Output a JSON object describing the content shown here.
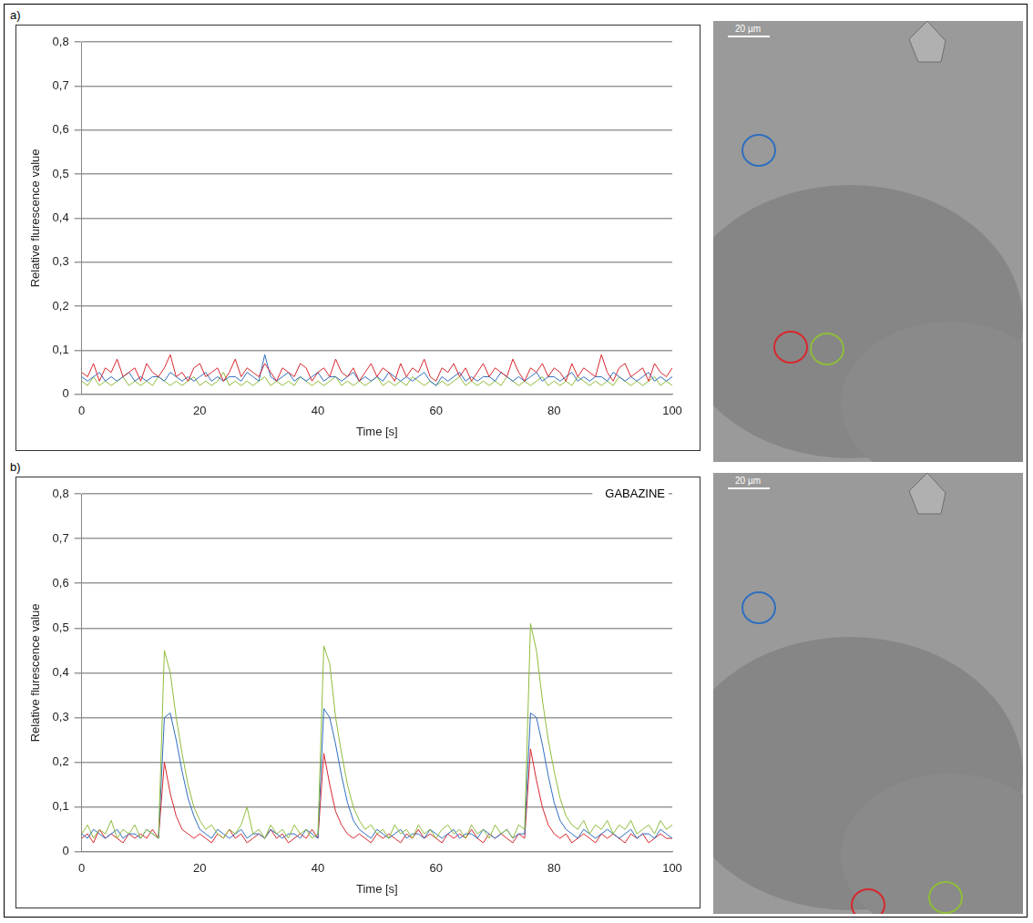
{
  "chart_data": [
    {
      "type": "line",
      "panel": "a)",
      "x_label": "Time [s]",
      "y_label": "Relative flurescence value",
      "xlim": [
        0,
        100
      ],
      "xticks": [
        0,
        20,
        40,
        60,
        80,
        100
      ],
      "ylim": [
        0,
        0.8
      ],
      "yticks": [
        0,
        {
          "value": 0.1,
          "label": "0,1"
        },
        {
          "value": 0.2,
          "label": "0,2"
        },
        {
          "value": 0.3,
          "label": "0,3"
        },
        {
          "value": 0.4,
          "label": "0,4"
        },
        {
          "value": 0.5,
          "label": "0,5"
        },
        {
          "value": 0.6,
          "label": "0,6"
        },
        {
          "value": 0.7,
          "label": "0,7"
        },
        {
          "value": 0.8,
          "label": "0,8"
        }
      ],
      "grid": "y",
      "x": [
        0,
        1,
        2,
        3,
        4,
        5,
        6,
        7,
        8,
        9,
        10,
        11,
        12,
        13,
        14,
        15,
        16,
        17,
        18,
        19,
        20,
        21,
        22,
        23,
        24,
        25,
        26,
        27,
        28,
        29,
        30,
        31,
        32,
        33,
        34,
        35,
        36,
        37,
        38,
        39,
        40,
        41,
        42,
        43,
        44,
        45,
        46,
        47,
        48,
        49,
        50,
        51,
        52,
        53,
        54,
        55,
        56,
        57,
        58,
        59,
        60,
        61,
        62,
        63,
        64,
        65,
        66,
        67,
        68,
        69,
        70,
        71,
        72,
        73,
        74,
        75,
        76,
        77,
        78,
        79,
        80,
        81,
        82,
        83,
        84,
        85,
        86,
        87,
        88,
        89,
        90,
        91,
        92,
        93,
        94,
        95,
        96,
        97,
        98,
        99,
        100
      ],
      "series": [
        {
          "color": "#d7282f",
          "values": [
            0.05,
            0.04,
            0.07,
            0.03,
            0.06,
            0.05,
            0.08,
            0.04,
            0.05,
            0.06,
            0.03,
            0.07,
            0.05,
            0.04,
            0.06,
            0.09,
            0.04,
            0.05,
            0.03,
            0.06,
            0.07,
            0.04,
            0.05,
            0.06,
            0.03,
            0.05,
            0.08,
            0.04,
            0.06,
            0.05,
            0.04,
            0.07,
            0.05,
            0.03,
            0.06,
            0.05,
            0.04,
            0.07,
            0.06,
            0.03,
            0.05,
            0.06,
            0.04,
            0.08,
            0.05,
            0.04,
            0.06,
            0.03,
            0.05,
            0.07,
            0.04,
            0.06,
            0.05,
            0.03,
            0.07,
            0.04,
            0.06,
            0.05,
            0.08,
            0.04,
            0.03,
            0.06,
            0.05,
            0.07,
            0.04,
            0.06,
            0.03,
            0.05,
            0.07,
            0.04,
            0.06,
            0.05,
            0.04,
            0.08,
            0.05,
            0.03,
            0.06,
            0.05,
            0.07,
            0.04,
            0.06,
            0.05,
            0.03,
            0.07,
            0.04,
            0.06,
            0.05,
            0.04,
            0.09,
            0.05,
            0.03,
            0.06,
            0.07,
            0.04,
            0.05,
            0.06,
            0.03,
            0.07,
            0.05,
            0.04,
            0.06
          ]
        },
        {
          "color": "#2f6fbf",
          "values": [
            0.04,
            0.03,
            0.04,
            0.05,
            0.03,
            0.04,
            0.03,
            0.04,
            0.05,
            0.03,
            0.04,
            0.03,
            0.04,
            0.04,
            0.03,
            0.05,
            0.04,
            0.03,
            0.04,
            0.03,
            0.04,
            0.05,
            0.03,
            0.04,
            0.03,
            0.04,
            0.04,
            0.03,
            0.05,
            0.04,
            0.03,
            0.09,
            0.04,
            0.03,
            0.04,
            0.05,
            0.03,
            0.04,
            0.03,
            0.04,
            0.05,
            0.03,
            0.04,
            0.04,
            0.03,
            0.04,
            0.05,
            0.03,
            0.04,
            0.03,
            0.04,
            0.03,
            0.05,
            0.04,
            0.03,
            0.04,
            0.03,
            0.04,
            0.05,
            0.03,
            0.02,
            0.04,
            0.03,
            0.04,
            0.05,
            0.03,
            0.04,
            0.03,
            0.04,
            0.04,
            0.03,
            0.05,
            0.04,
            0.03,
            0.04,
            0.03,
            0.04,
            0.05,
            0.03,
            0.04,
            0.04,
            0.03,
            0.04,
            0.05,
            0.03,
            0.04,
            0.03,
            0.04,
            0.04,
            0.03,
            0.05,
            0.04,
            0.03,
            0.04,
            0.03,
            0.04,
            0.05,
            0.03,
            0.04,
            0.03,
            0.04
          ]
        },
        {
          "color": "#8fbc3c",
          "values": [
            0.03,
            0.02,
            0.04,
            0.02,
            0.03,
            0.02,
            0.03,
            0.04,
            0.02,
            0.03,
            0.02,
            0.03,
            0.02,
            0.04,
            0.03,
            0.02,
            0.03,
            0.02,
            0.03,
            0.04,
            0.02,
            0.03,
            0.02,
            0.03,
            0.05,
            0.02,
            0.03,
            0.02,
            0.03,
            0.02,
            0.03,
            0.04,
            0.02,
            0.03,
            0.02,
            0.03,
            0.02,
            0.04,
            0.03,
            0.02,
            0.03,
            0.02,
            0.03,
            0.04,
            0.02,
            0.03,
            0.02,
            0.03,
            0.02,
            0.03,
            0.04,
            0.02,
            0.03,
            0.02,
            0.03,
            0.02,
            0.04,
            0.03,
            0.02,
            0.03,
            0.02,
            0.03,
            0.02,
            0.03,
            0.04,
            0.02,
            0.03,
            0.02,
            0.03,
            0.02,
            0.03,
            0.02,
            0.04,
            0.03,
            0.02,
            0.03,
            0.02,
            0.03,
            0.04,
            0.02,
            0.03,
            0.02,
            0.03,
            0.02,
            0.04,
            0.03,
            0.02,
            0.03,
            0.02,
            0.03,
            0.02,
            0.04,
            0.03,
            0.02,
            0.03,
            0.02,
            0.03,
            0.04,
            0.02,
            0.03,
            0.02
          ]
        }
      ],
      "image": {
        "scale_bar": "20 µm"
      }
    },
    {
      "type": "line",
      "panel": "b)",
      "annotation": "GABAZINE",
      "x_label": "Time [s]",
      "y_label": "Relative flurescence value",
      "xlim": [
        0,
        100
      ],
      "xticks": [
        0,
        20,
        40,
        60,
        80,
        100
      ],
      "ylim": [
        0,
        0.8
      ],
      "yticks": [
        0,
        {
          "value": 0.1,
          "label": "0,1"
        },
        {
          "value": 0.2,
          "label": "0,2"
        },
        {
          "value": 0.3,
          "label": "0,3"
        },
        {
          "value": 0.4,
          "label": "0,4"
        },
        {
          "value": 0.5,
          "label": "0,5"
        },
        {
          "value": 0.6,
          "label": "0,6"
        },
        {
          "value": 0.7,
          "label": "0,7"
        },
        {
          "value": 0.8,
          "label": "0,8"
        }
      ],
      "grid": "y",
      "x": [
        0,
        1,
        2,
        3,
        4,
        5,
        6,
        7,
        8,
        9,
        10,
        11,
        12,
        13,
        14,
        15,
        16,
        17,
        18,
        19,
        20,
        21,
        22,
        23,
        24,
        25,
        26,
        27,
        28,
        29,
        30,
        31,
        32,
        33,
        34,
        35,
        36,
        37,
        38,
        39,
        40,
        41,
        42,
        43,
        44,
        45,
        46,
        47,
        48,
        49,
        50,
        51,
        52,
        53,
        54,
        55,
        56,
        57,
        58,
        59,
        60,
        61,
        62,
        63,
        64,
        65,
        66,
        67,
        68,
        69,
        70,
        71,
        72,
        73,
        74,
        75,
        76,
        77,
        78,
        79,
        80,
        81,
        82,
        83,
        84,
        85,
        86,
        87,
        88,
        89,
        90,
        91,
        92,
        93,
        94,
        95,
        96,
        97,
        98,
        99,
        100
      ],
      "series": [
        {
          "color": "#8fbc3c",
          "values": [
            0.04,
            0.06,
            0.03,
            0.05,
            0.04,
            0.07,
            0.03,
            0.05,
            0.04,
            0.06,
            0.03,
            0.05,
            0.04,
            0.03,
            0.45,
            0.4,
            0.3,
            0.22,
            0.15,
            0.1,
            0.07,
            0.05,
            0.06,
            0.04,
            0.03,
            0.05,
            0.04,
            0.06,
            0.1,
            0.04,
            0.05,
            0.03,
            0.06,
            0.04,
            0.05,
            0.03,
            0.06,
            0.04,
            0.05,
            0.03,
            0.04,
            0.46,
            0.42,
            0.3,
            0.22,
            0.15,
            0.1,
            0.07,
            0.05,
            0.06,
            0.04,
            0.05,
            0.03,
            0.06,
            0.04,
            0.05,
            0.03,
            0.06,
            0.04,
            0.05,
            0.03,
            0.05,
            0.06,
            0.04,
            0.05,
            0.03,
            0.06,
            0.04,
            0.05,
            0.03,
            0.06,
            0.04,
            0.05,
            0.03,
            0.06,
            0.05,
            0.51,
            0.45,
            0.34,
            0.25,
            0.18,
            0.12,
            0.08,
            0.06,
            0.05,
            0.07,
            0.04,
            0.06,
            0.05,
            0.07,
            0.04,
            0.06,
            0.05,
            0.07,
            0.04,
            0.05,
            0.06,
            0.04,
            0.07,
            0.05,
            0.06
          ]
        },
        {
          "color": "#2f6fbf",
          "values": [
            0.04,
            0.03,
            0.05,
            0.04,
            0.03,
            0.04,
            0.05,
            0.03,
            0.04,
            0.04,
            0.03,
            0.05,
            0.04,
            0.03,
            0.3,
            0.31,
            0.25,
            0.18,
            0.12,
            0.08,
            0.05,
            0.04,
            0.03,
            0.05,
            0.04,
            0.03,
            0.04,
            0.05,
            0.03,
            0.04,
            0.04,
            0.03,
            0.05,
            0.04,
            0.03,
            0.04,
            0.04,
            0.03,
            0.05,
            0.04,
            0.03,
            0.32,
            0.3,
            0.24,
            0.17,
            0.11,
            0.07,
            0.05,
            0.04,
            0.03,
            0.05,
            0.04,
            0.03,
            0.04,
            0.05,
            0.03,
            0.04,
            0.04,
            0.03,
            0.05,
            0.04,
            0.03,
            0.04,
            0.05,
            0.03,
            0.04,
            0.04,
            0.03,
            0.05,
            0.04,
            0.03,
            0.04,
            0.05,
            0.03,
            0.04,
            0.04,
            0.31,
            0.3,
            0.24,
            0.17,
            0.11,
            0.07,
            0.05,
            0.04,
            0.03,
            0.05,
            0.04,
            0.03,
            0.04,
            0.05,
            0.04,
            0.03,
            0.04,
            0.05,
            0.03,
            0.04,
            0.04,
            0.03,
            0.05,
            0.04,
            0.03
          ]
        },
        {
          "color": "#d7282f",
          "values": [
            0.03,
            0.04,
            0.02,
            0.05,
            0.03,
            0.04,
            0.03,
            0.02,
            0.04,
            0.03,
            0.04,
            0.03,
            0.05,
            0.03,
            0.2,
            0.13,
            0.08,
            0.05,
            0.04,
            0.03,
            0.04,
            0.03,
            0.02,
            0.04,
            0.03,
            0.05,
            0.03,
            0.04,
            0.02,
            0.03,
            0.04,
            0.03,
            0.05,
            0.03,
            0.04,
            0.02,
            0.03,
            0.04,
            0.03,
            0.05,
            0.03,
            0.22,
            0.15,
            0.09,
            0.06,
            0.04,
            0.03,
            0.04,
            0.03,
            0.02,
            0.04,
            0.03,
            0.04,
            0.03,
            0.02,
            0.04,
            0.03,
            0.05,
            0.03,
            0.04,
            0.03,
            0.02,
            0.04,
            0.03,
            0.04,
            0.03,
            0.05,
            0.03,
            0.02,
            0.04,
            0.03,
            0.04,
            0.03,
            0.02,
            0.04,
            0.03,
            0.23,
            0.16,
            0.1,
            0.06,
            0.04,
            0.03,
            0.04,
            0.02,
            0.03,
            0.04,
            0.03,
            0.02,
            0.04,
            0.03,
            0.04,
            0.03,
            0.02,
            0.04,
            0.03,
            0.04,
            0.02,
            0.03,
            0.04,
            0.03,
            0.03
          ]
        }
      ],
      "image": {
        "scale_bar": "20 µm"
      }
    }
  ]
}
